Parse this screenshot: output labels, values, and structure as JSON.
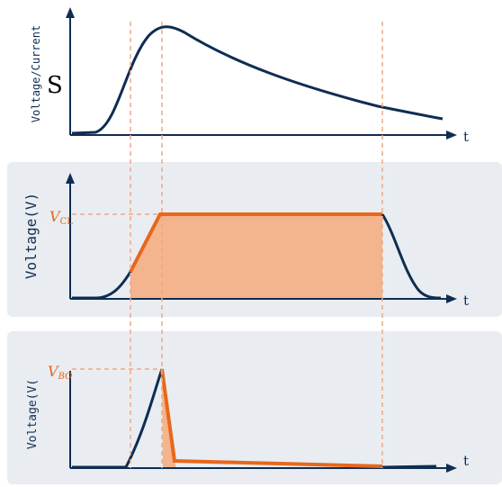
{
  "panel_top": {
    "ylabel": "Voltage/Current",
    "marker": "S",
    "xlabel": "t"
  },
  "panel_mid": {
    "ylabel": "Voltage(V)",
    "level_label_main": "V",
    "level_label_sub": "CL",
    "xlabel": "t"
  },
  "panel_bot": {
    "ylabel": "Voltage(V(",
    "level_label_main": "V",
    "level_label_sub": "BO",
    "xlabel": "t"
  },
  "colors": {
    "line": "#0f2d52",
    "accent": "#e8671b",
    "fill": "#f3b48e",
    "panel_bg": "#e9edf1",
    "guide": "#efa882"
  }
}
